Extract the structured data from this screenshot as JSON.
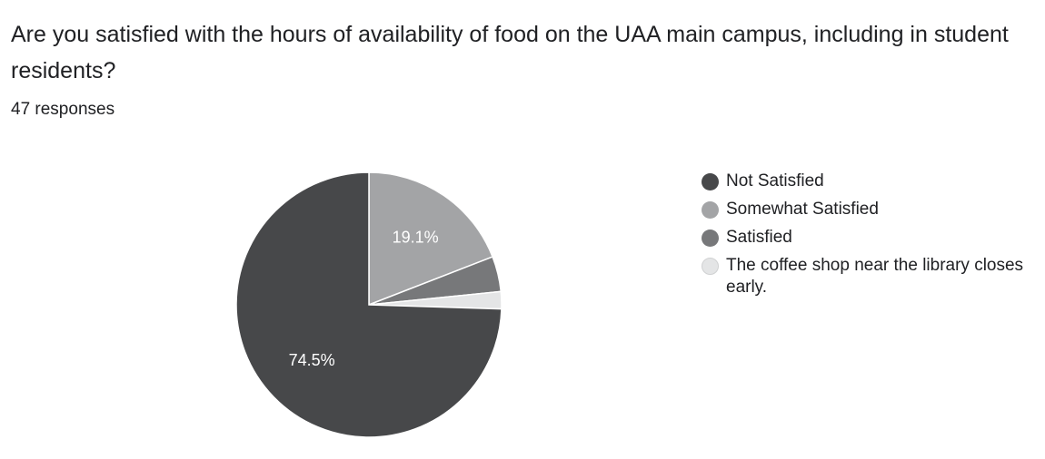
{
  "question": "Are you satisfied with the hours of availability of food on the UAA main campus, including in student residents?",
  "response_count": "47 responses",
  "chart_data": {
    "type": "pie",
    "title": "Are you satisfied with the hours of availability of food on the UAA main campus, including in student residents?",
    "slices": [
      {
        "label": "Not Satisfied",
        "percent": 74.5,
        "display": "74.5%",
        "color": "#47484a"
      },
      {
        "label": "Somewhat Satisfied",
        "percent": 19.1,
        "display": "19.1%",
        "color": "#a3a4a6"
      },
      {
        "label": "Satisfied",
        "percent": 4.3,
        "display": "",
        "color": "#77787a"
      },
      {
        "label": "The coffee shop near the library closes early.",
        "percent": 2.1,
        "display": "",
        "color": "#e4e5e6"
      }
    ],
    "legend_position": "right"
  }
}
